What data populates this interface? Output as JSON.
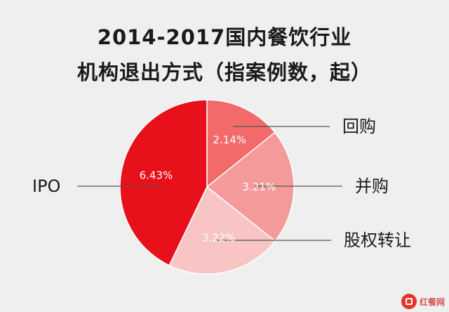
{
  "chart_data": {
    "type": "pie",
    "title_line1": "2014-2017国内餐饮行业",
    "title_line2": "机构退出方式（指案例数，起）",
    "slices": [
      {
        "label": "回购",
        "value_label": "2.14%",
        "value": 2.14,
        "color": "#f36a6a"
      },
      {
        "label": "并购",
        "value_label": "3.21%",
        "value": 3.21,
        "color": "#f59a9a"
      },
      {
        "label": "股权转让",
        "value_label": "3.22%",
        "value": 3.22,
        "color": "#f8c4c4"
      },
      {
        "label": "IPO",
        "value_label": "6.43%",
        "value": 6.43,
        "color": "#e8101a"
      }
    ],
    "start_angle_deg": -90,
    "legend": "labels with leader lines"
  },
  "watermark": {
    "text": "红餐网"
  }
}
